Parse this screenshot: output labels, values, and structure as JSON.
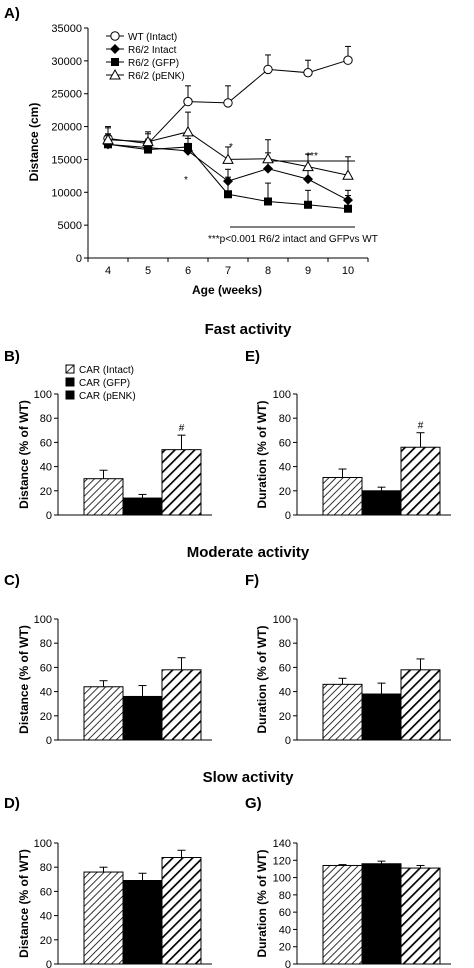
{
  "sections": {
    "fast": "Fast activity",
    "moderate": "Moderate activity",
    "slow": "Slow activity"
  },
  "chart_data": [
    {
      "id": "A",
      "type": "line",
      "panel_label": "A)",
      "xlabel": "Age (weeks)",
      "ylabel": "Distance (cm)",
      "x": [
        4,
        5,
        6,
        7,
        8,
        9,
        10
      ],
      "xlim": [
        3.5,
        10.5
      ],
      "ylim": [
        0,
        35000
      ],
      "yticks": [
        0,
        5000,
        10000,
        15000,
        20000,
        25000,
        30000,
        35000
      ],
      "legend_position": "top-left",
      "series": [
        {
          "name": "WT (Intact)",
          "marker": "open-circle",
          "values": [
            18200,
            17400,
            23800,
            23600,
            28700,
            28200,
            30100
          ],
          "errors": [
            1800,
            1500,
            2400,
            2600,
            2200,
            1900,
            2100
          ]
        },
        {
          "name": "R6/2 Intact",
          "marker": "filled-diamond",
          "values": [
            17300,
            16800,
            16300,
            11700,
            13600,
            12000,
            8800
          ],
          "errors": [
            1600,
            1300,
            2500,
            1800,
            2400,
            1700,
            1500
          ]
        },
        {
          "name": "R6/2 (GFP)",
          "marker": "filled-square",
          "values": [
            17300,
            16500,
            16900,
            9700,
            8600,
            8100,
            7500
          ],
          "errors": [
            1300,
            1300,
            1300,
            2600,
            2800,
            2200,
            2000
          ]
        },
        {
          "name": "R6/2 (pENK)",
          "marker": "open-triangle",
          "values": [
            18000,
            17700,
            19200,
            15000,
            15100,
            13900,
            12600
          ],
          "errors": [
            1800,
            1500,
            3000,
            1900,
            2900,
            1900,
            2800
          ]
        }
      ],
      "annotations": {
        "upper_significance": "***",
        "lower_note": "***p<0.001 R6/2 intact and GFPvs WT",
        "star_6": "*",
        "star_7": "*"
      }
    },
    {
      "id": "B",
      "type": "bar",
      "panel_label": "B)",
      "ylabel": "Distance (% of WT)",
      "ylim": [
        0,
        100
      ],
      "yticks": [
        0,
        20,
        40,
        60,
        80,
        100
      ],
      "categories": [
        "CAR (Intact)",
        "CAR (GFP)",
        "CAR (pENK)"
      ],
      "values": [
        30,
        14,
        54
      ],
      "errors": [
        7,
        3,
        12
      ],
      "significance": [
        "",
        "",
        "#"
      ],
      "legend_position": "top-left"
    },
    {
      "id": "E",
      "type": "bar",
      "panel_label": "E)",
      "ylabel": "Duration (% of WT)",
      "ylim": [
        0,
        100
      ],
      "yticks": [
        0,
        20,
        40,
        60,
        80,
        100
      ],
      "categories": [
        "CAR (Intact)",
        "CAR (GFP)",
        "CAR (pENK)"
      ],
      "values": [
        31,
        20,
        56
      ],
      "errors": [
        7,
        3,
        12
      ],
      "significance": [
        "",
        "",
        "#"
      ]
    },
    {
      "id": "C",
      "type": "bar",
      "panel_label": "C)",
      "ylabel": "Distance (% of WT)",
      "ylim": [
        0,
        100
      ],
      "yticks": [
        0,
        20,
        40,
        60,
        80,
        100
      ],
      "categories": [
        "CAR (Intact)",
        "CAR (GFP)",
        "CAR (pENK)"
      ],
      "values": [
        44,
        36,
        58
      ],
      "errors": [
        5,
        9,
        10
      ]
    },
    {
      "id": "F",
      "type": "bar",
      "panel_label": "F)",
      "ylabel": "Duration (% of WT)",
      "ylim": [
        0,
        100
      ],
      "yticks": [
        0,
        20,
        40,
        60,
        80,
        100
      ],
      "categories": [
        "CAR (Intact)",
        "CAR (GFP)",
        "CAR (pENK)"
      ],
      "values": [
        46,
        38,
        58
      ],
      "errors": [
        5,
        9,
        9
      ]
    },
    {
      "id": "D",
      "type": "bar",
      "panel_label": "D)",
      "ylabel": "Distance (% of WT)",
      "ylim": [
        0,
        100
      ],
      "yticks": [
        0,
        20,
        40,
        60,
        80,
        100
      ],
      "categories": [
        "CAR (Intact)",
        "CAR (GFP)",
        "CAR (pENK)"
      ],
      "values": [
        76,
        69,
        88
      ],
      "errors": [
        4,
        6,
        6
      ]
    },
    {
      "id": "G",
      "type": "bar",
      "panel_label": "G)",
      "ylabel": "Duration (% of WT)",
      "ylim": [
        0,
        140
      ],
      "yticks": [
        0,
        20,
        40,
        60,
        80,
        100,
        120,
        140
      ],
      "categories": [
        "CAR (Intact)",
        "CAR (GFP)",
        "CAR (pENK)"
      ],
      "values": [
        114,
        116,
        111
      ],
      "errors": [
        1,
        3,
        3
      ]
    }
  ]
}
